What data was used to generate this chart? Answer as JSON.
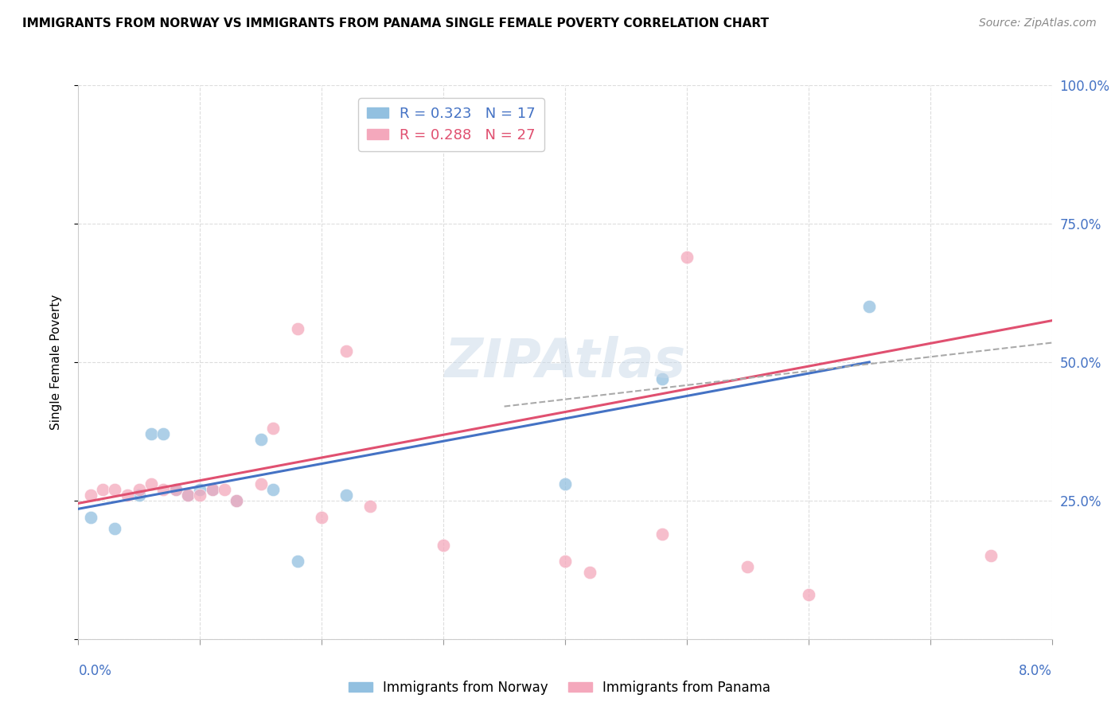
{
  "title": "IMMIGRANTS FROM NORWAY VS IMMIGRANTS FROM PANAMA SINGLE FEMALE POVERTY CORRELATION CHART",
  "source": "Source: ZipAtlas.com",
  "ylabel": "Single Female Poverty",
  "legend_label_norway": "Immigrants from Norway",
  "legend_label_panama": "Immigrants from Panama",
  "norway_color": "#92c0e0",
  "panama_color": "#f4a8bc",
  "norway_line_color": "#4472c4",
  "panama_line_color": "#e05070",
  "norway_scatter_x": [
    0.001,
    0.003,
    0.005,
    0.006,
    0.007,
    0.008,
    0.009,
    0.01,
    0.011,
    0.013,
    0.015,
    0.016,
    0.018,
    0.022,
    0.04,
    0.048,
    0.065
  ],
  "norway_scatter_y": [
    0.22,
    0.2,
    0.26,
    0.37,
    0.37,
    0.27,
    0.26,
    0.27,
    0.27,
    0.25,
    0.36,
    0.27,
    0.14,
    0.26,
    0.28,
    0.47,
    0.6
  ],
  "panama_scatter_x": [
    0.001,
    0.002,
    0.003,
    0.004,
    0.005,
    0.006,
    0.007,
    0.008,
    0.009,
    0.01,
    0.011,
    0.012,
    0.013,
    0.015,
    0.016,
    0.018,
    0.02,
    0.022,
    0.024,
    0.03,
    0.04,
    0.042,
    0.048,
    0.05,
    0.055,
    0.06,
    0.075
  ],
  "panama_scatter_y": [
    0.26,
    0.27,
    0.27,
    0.26,
    0.27,
    0.28,
    0.27,
    0.27,
    0.26,
    0.26,
    0.27,
    0.27,
    0.25,
    0.28,
    0.38,
    0.56,
    0.22,
    0.52,
    0.24,
    0.17,
    0.14,
    0.12,
    0.19,
    0.69,
    0.13,
    0.08,
    0.15
  ],
  "norway_line_x": [
    0.0,
    0.065
  ],
  "norway_line_y": [
    0.235,
    0.5
  ],
  "panama_line_x": [
    0.0,
    0.08
  ],
  "panama_line_y": [
    0.245,
    0.575
  ],
  "dash_line_x": [
    0.035,
    0.08
  ],
  "dash_line_y": [
    0.42,
    0.535
  ],
  "xlim": [
    0.0,
    0.08
  ],
  "ylim": [
    0.0,
    1.0
  ],
  "yticks": [
    0.0,
    0.25,
    0.5,
    0.75,
    1.0
  ],
  "ytick_labels": [
    "",
    "25.0%",
    "50.0%",
    "75.0%",
    "100.0%"
  ],
  "xticks": [
    0.0,
    0.01,
    0.02,
    0.03,
    0.04,
    0.05,
    0.06,
    0.07,
    0.08
  ]
}
